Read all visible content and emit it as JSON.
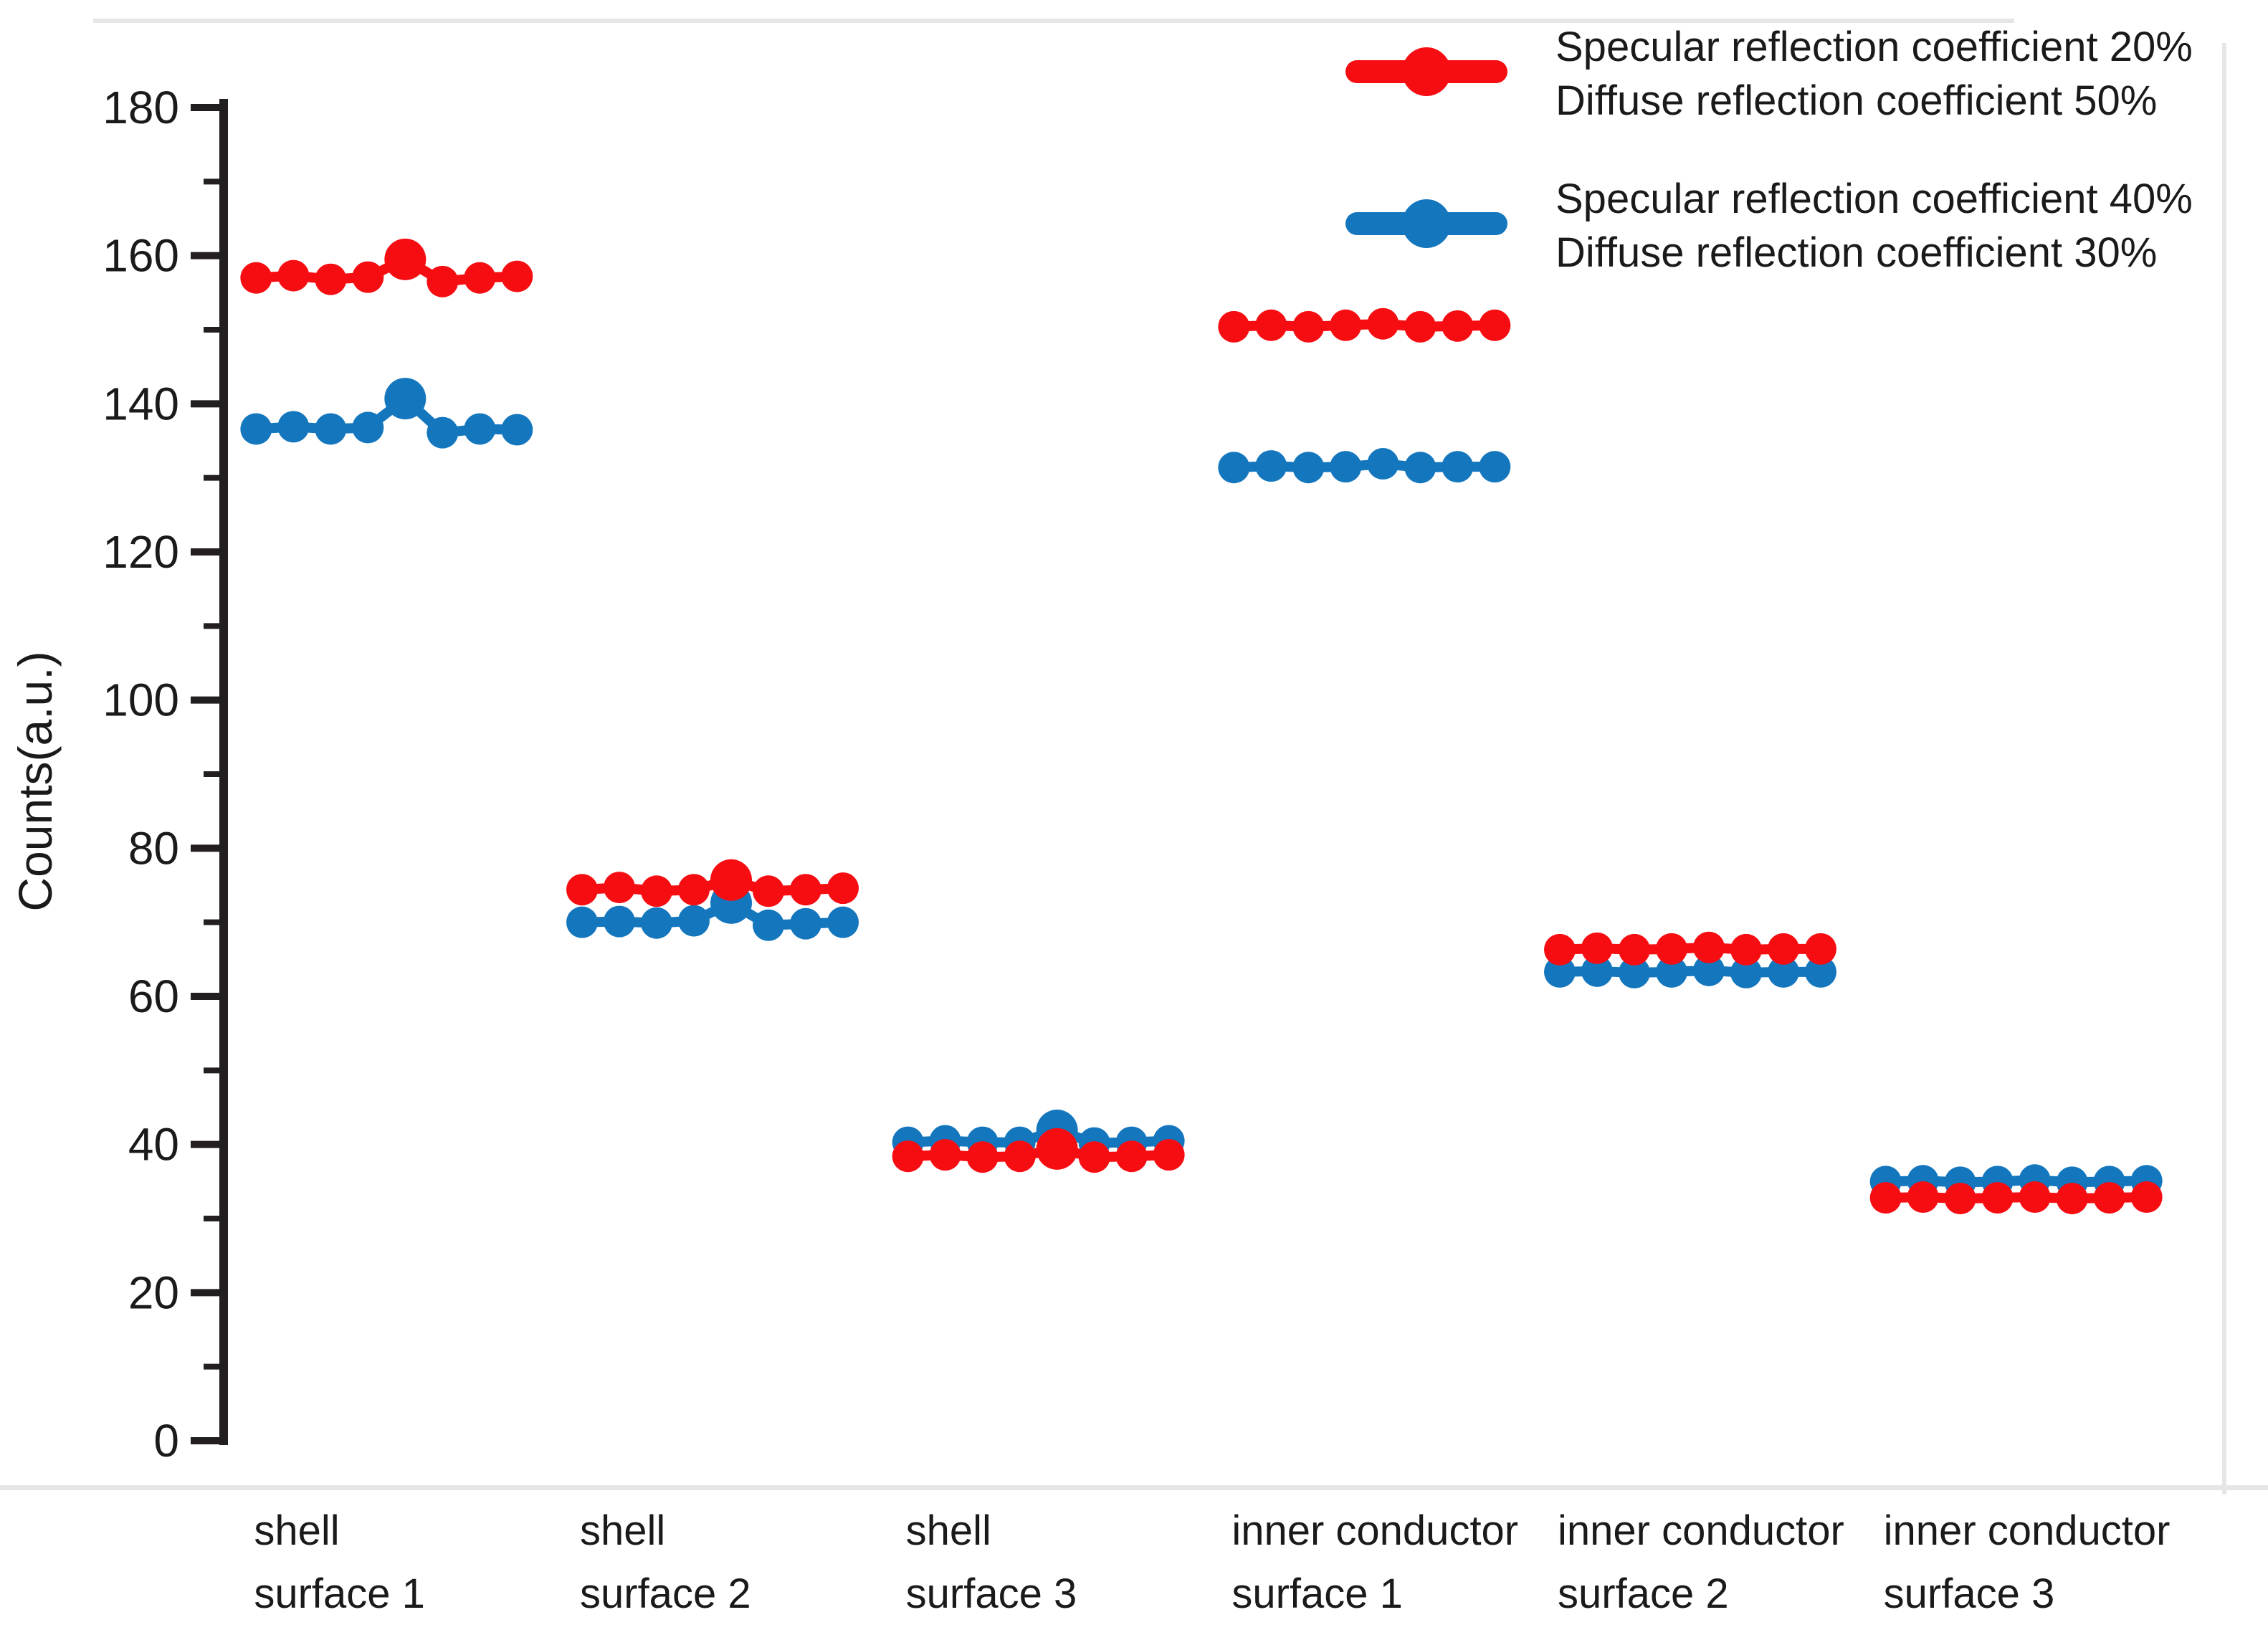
{
  "figure": {
    "background": "#ffffff"
  },
  "colors": {
    "series_red": "#f60d12",
    "series_blue": "#1477be",
    "axis": "#231f20",
    "text": "#1a1a1a",
    "divider": "#e6e6e6"
  },
  "y_axis": {
    "label": "Counts(a.u.)",
    "min": 0,
    "max": 180,
    "major_step": 20,
    "minor_step": 10,
    "tick_labels": [
      "0",
      "20",
      "40",
      "60",
      "80",
      "100",
      "120",
      "140",
      "160",
      "180"
    ]
  },
  "legend": {
    "position": "top-right",
    "items": [
      {
        "color_key": "series_red",
        "line1": "Specular reflection coefficient 20%",
        "line2": "Diffuse reflection coefficient 50%"
      },
      {
        "color_key": "series_blue",
        "line1": "Specular reflection coefficient 40%",
        "line2": "Diffuse reflection coefficient 30%"
      }
    ]
  },
  "chart_data": {
    "type": "line",
    "title": "",
    "xlabel": "",
    "ylabel": "Counts(a.u.)",
    "ylim": [
      0,
      180
    ],
    "grid": false,
    "legend_position": "top-right",
    "points_per_cluster": 8,
    "categories": [
      {
        "label": "shell surface 1",
        "lines": [
          "shell",
          "surface 1"
        ]
      },
      {
        "label": "shell surface 2",
        "lines": [
          "shell",
          "surface 2"
        ]
      },
      {
        "label": "shell surface 3",
        "lines": [
          "shell",
          "surface 3"
        ]
      },
      {
        "label": "inner conductor surface 1",
        "lines": [
          "inner conductor",
          "surface 1"
        ]
      },
      {
        "label": "inner conductor surface 2",
        "lines": [
          "inner conductor",
          "surface 2"
        ]
      },
      {
        "label": "inner conductor surface 3",
        "lines": [
          "inner conductor",
          "surface 3"
        ]
      }
    ],
    "series": [
      {
        "name": "Specular reflection coefficient 20% Diffuse reflection coefficient 50%",
        "color_key": "series_red",
        "clusters": [
          [
            157.0,
            157.3,
            156.8,
            157.1,
            159.5,
            156.5,
            157.0,
            157.2
          ],
          [
            74.4,
            74.7,
            74.2,
            74.4,
            75.7,
            74.2,
            74.4,
            74.6
          ],
          [
            38.4,
            38.6,
            38.3,
            38.4,
            39.4,
            38.3,
            38.4,
            38.6
          ],
          [
            150.4,
            150.6,
            150.4,
            150.6,
            150.8,
            150.4,
            150.5,
            150.6
          ],
          [
            66.3,
            66.5,
            66.3,
            66.4,
            66.6,
            66.3,
            66.4,
            66.4
          ],
          [
            32.8,
            32.9,
            32.7,
            32.8,
            32.9,
            32.7,
            32.8,
            32.9
          ]
        ]
      },
      {
        "name": "Specular reflection coefficient 40% Diffuse reflection coefficient 30%",
        "color_key": "series_blue",
        "clusters": [
          [
            136.6,
            136.9,
            136.6,
            136.8,
            140.7,
            136.1,
            136.6,
            136.5
          ],
          [
            70.0,
            70.1,
            69.9,
            70.2,
            72.6,
            69.6,
            69.8,
            70.0
          ],
          [
            40.3,
            40.5,
            40.3,
            40.3,
            41.9,
            40.2,
            40.3,
            40.5
          ],
          [
            131.4,
            131.6,
            131.4,
            131.5,
            131.9,
            131.4,
            131.5,
            131.5
          ],
          [
            63.3,
            63.4,
            63.2,
            63.3,
            63.5,
            63.2,
            63.3,
            63.3
          ],
          [
            35.0,
            35.1,
            34.9,
            35.0,
            35.2,
            34.9,
            35.0,
            35.1
          ]
        ]
      }
    ]
  }
}
